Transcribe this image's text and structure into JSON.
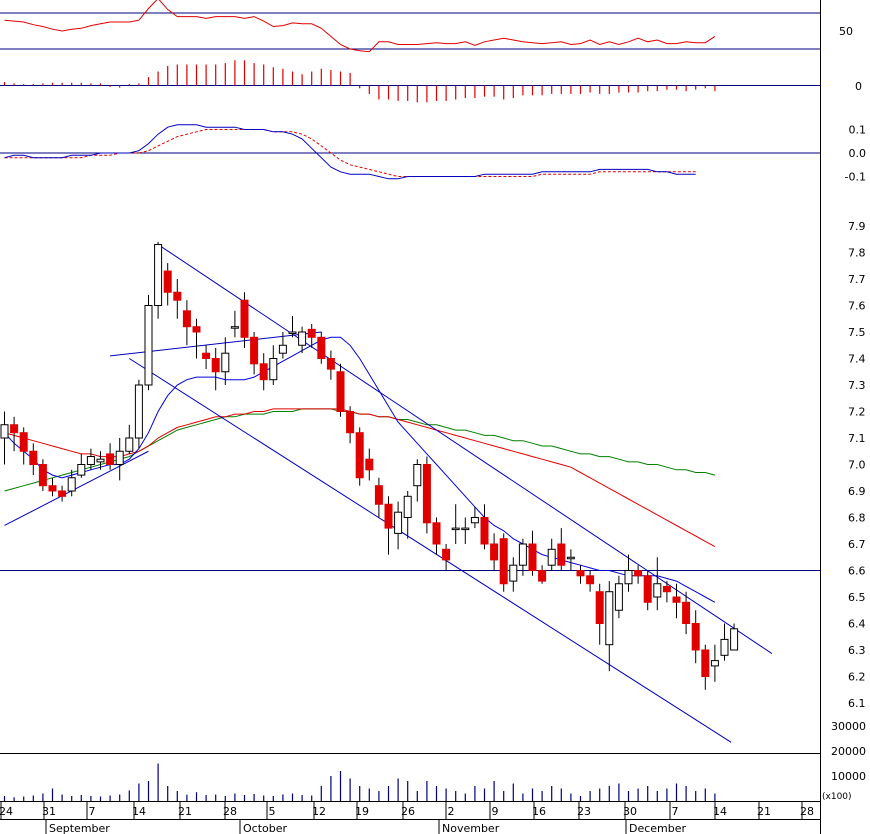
{
  "chart_data": {
    "type": "candlestick",
    "panels": {
      "rsi": {
        "levels": [
          70,
          30
        ],
        "tick_labels": [
          "50"
        ],
        "values": [
          62,
          61,
          60,
          57,
          55,
          52,
          50,
          52,
          53,
          56,
          58,
          60,
          60,
          60,
          62,
          75,
          86,
          74,
          66,
          66,
          66,
          64,
          66,
          66,
          66,
          64,
          66,
          61,
          55,
          56,
          59,
          58,
          58,
          53,
          44,
          35,
          30,
          28,
          27,
          38,
          38,
          35,
          35,
          35,
          36,
          37,
          36,
          36,
          38,
          34,
          38,
          40,
          42,
          40,
          38,
          37,
          36,
          37,
          38,
          35,
          36,
          40,
          35,
          38,
          35,
          38,
          42,
          38,
          40,
          36,
          36,
          38,
          37,
          37,
          44
        ]
      },
      "histogram": {
        "tick_labels": [
          "0"
        ],
        "values": [
          0.005,
          0.003,
          0.002,
          0.002,
          0.003,
          0.004,
          0.004,
          0.004,
          0.004,
          0.003,
          0.003,
          -0.002,
          -0.003,
          0.002,
          0.003,
          0.012,
          0.02,
          0.028,
          0.03,
          0.03,
          0.03,
          0.03,
          0.03,
          0.032,
          0.036,
          0.036,
          0.032,
          0.03,
          0.026,
          0.024,
          0.02,
          0.016,
          0.02,
          0.024,
          0.022,
          0.02,
          0.018,
          -0.004,
          -0.012,
          -0.02,
          -0.02,
          -0.022,
          -0.022,
          -0.024,
          -0.024,
          -0.022,
          -0.022,
          -0.02,
          -0.018,
          -0.018,
          -0.016,
          -0.016,
          -0.02,
          -0.018,
          -0.014,
          -0.014,
          -0.014,
          -0.012,
          -0.012,
          -0.012,
          -0.012,
          -0.01,
          -0.012,
          -0.012,
          -0.01,
          -0.01,
          -0.01,
          -0.008,
          -0.008,
          -0.006,
          -0.006,
          -0.008,
          -0.006,
          -0.004,
          -0.008
        ]
      },
      "macd": {
        "tick_labels": [
          "0.1",
          "0.0",
          "-0.1"
        ],
        "ylim": [
          -0.14,
          0.16
        ],
        "macd": [
          -0.02,
          -0.01,
          -0.01,
          -0.02,
          -0.02,
          -0.02,
          -0.02,
          -0.01,
          -0.01,
          -0.01,
          0.0,
          0.0,
          0.0,
          0.0,
          0.01,
          0.04,
          0.08,
          0.11,
          0.12,
          0.12,
          0.12,
          0.11,
          0.11,
          0.11,
          0.11,
          0.1,
          0.1,
          0.1,
          0.09,
          0.09,
          0.08,
          0.06,
          0.02,
          -0.02,
          -0.06,
          -0.08,
          -0.09,
          -0.09,
          -0.09,
          -0.1,
          -0.11,
          -0.11,
          -0.1,
          -0.1,
          -0.1,
          -0.1,
          -0.1,
          -0.1,
          -0.1,
          -0.1,
          -0.09,
          -0.09,
          -0.09,
          -0.09,
          -0.09,
          -0.09,
          -0.08,
          -0.08,
          -0.08,
          -0.08,
          -0.08,
          -0.08,
          -0.07,
          -0.07,
          -0.07,
          -0.07,
          -0.07,
          -0.07,
          -0.08,
          -0.08,
          -0.09,
          -0.09,
          -0.09
        ],
        "signal": [
          -0.02,
          -0.02,
          -0.02,
          -0.02,
          -0.02,
          -0.02,
          -0.02,
          -0.02,
          -0.02,
          -0.01,
          -0.01,
          -0.01,
          0.0,
          0.0,
          0.0,
          0.01,
          0.03,
          0.05,
          0.07,
          0.08,
          0.09,
          0.1,
          0.1,
          0.1,
          0.1,
          0.1,
          0.1,
          0.1,
          0.09,
          0.09,
          0.09,
          0.08,
          0.06,
          0.03,
          0.0,
          -0.03,
          -0.05,
          -0.06,
          -0.07,
          -0.08,
          -0.09,
          -0.1,
          -0.1,
          -0.1,
          -0.1,
          -0.1,
          -0.1,
          -0.1,
          -0.1,
          -0.1,
          -0.1,
          -0.1,
          -0.1,
          -0.1,
          -0.1,
          -0.1,
          -0.09,
          -0.09,
          -0.09,
          -0.09,
          -0.09,
          -0.09,
          -0.08,
          -0.08,
          -0.08,
          -0.08,
          -0.08,
          -0.08,
          -0.08,
          -0.08,
          -0.08,
          -0.08,
          -0.08
        ]
      },
      "price": {
        "tick_labels": [
          "7.9",
          "7.8",
          "7.7",
          "7.6",
          "7.5",
          "7.4",
          "7.3",
          "7.2",
          "7.1",
          "7.0",
          "6.9",
          "6.8",
          "6.7",
          "6.6",
          "6.5",
          "6.4",
          "6.3",
          "6.2",
          "6.1"
        ],
        "ylim": [
          6.05,
          7.95
        ],
        "horizontal_line": 6.6,
        "candles": [
          [
            7.1,
            7.15,
            7.2,
            7.0
          ],
          [
            7.15,
            7.12,
            7.18,
            7.05
          ],
          [
            7.12,
            7.05,
            7.14,
            7.0
          ],
          [
            7.05,
            7.0,
            7.08,
            6.96
          ],
          [
            7.0,
            6.92,
            7.02,
            6.9
          ],
          [
            6.92,
            6.9,
            6.95,
            6.88
          ],
          [
            6.9,
            6.88,
            6.92,
            6.86
          ],
          [
            6.9,
            6.95,
            6.98,
            6.88
          ],
          [
            6.96,
            7.0,
            7.04,
            6.95
          ],
          [
            7.0,
            7.03,
            7.06,
            6.98
          ],
          [
            7.01,
            7.02,
            7.05,
            6.98
          ],
          [
            7.04,
            7.0,
            7.08,
            6.98
          ],
          [
            7.0,
            7.05,
            7.1,
            6.94
          ],
          [
            7.05,
            7.1,
            7.15,
            7.04
          ],
          [
            7.1,
            7.3,
            7.32,
            7.06
          ],
          [
            7.3,
            7.6,
            7.64,
            7.28
          ],
          [
            7.6,
            7.83,
            7.84,
            7.55
          ],
          [
            7.73,
            7.65,
            7.76,
            7.6
          ],
          [
            7.65,
            7.62,
            7.7,
            7.55
          ],
          [
            7.58,
            7.52,
            7.62,
            7.45
          ],
          [
            7.52,
            7.5,
            7.55,
            7.4
          ],
          [
            7.42,
            7.4,
            7.45,
            7.36
          ],
          [
            7.4,
            7.35,
            7.44,
            7.28
          ],
          [
            7.35,
            7.42,
            7.48,
            7.3
          ],
          [
            7.52,
            7.52,
            7.58,
            7.48
          ],
          [
            7.62,
            7.48,
            7.65,
            7.44
          ],
          [
            7.48,
            7.38,
            7.5,
            7.34
          ],
          [
            7.38,
            7.32,
            7.42,
            7.28
          ],
          [
            7.32,
            7.4,
            7.45,
            7.3
          ],
          [
            7.42,
            7.45,
            7.5,
            7.4
          ],
          [
            7.5,
            7.5,
            7.56,
            7.48
          ],
          [
            7.45,
            7.5,
            7.52,
            7.42
          ],
          [
            7.51,
            7.48,
            7.53,
            7.44
          ],
          [
            7.48,
            7.4,
            7.5,
            7.38
          ],
          [
            7.4,
            7.36,
            7.43,
            7.32
          ],
          [
            7.35,
            7.2,
            7.38,
            7.18
          ],
          [
            7.2,
            7.12,
            7.22,
            7.08
          ],
          [
            7.12,
            6.95,
            7.14,
            6.92
          ],
          [
            7.02,
            6.98,
            7.06,
            6.94
          ],
          [
            6.92,
            6.85,
            6.95,
            6.8
          ],
          [
            6.85,
            6.76,
            6.88,
            6.66
          ],
          [
            6.74,
            6.82,
            6.86,
            6.68
          ],
          [
            6.8,
            6.88,
            6.9,
            6.72
          ],
          [
            6.92,
            7.0,
            7.02,
            6.86
          ],
          [
            7.0,
            6.78,
            7.03,
            6.74
          ],
          [
            6.78,
            6.7,
            6.8,
            6.66
          ],
          [
            6.68,
            6.64,
            6.7,
            6.6
          ],
          [
            6.76,
            6.76,
            6.85,
            6.7
          ],
          [
            6.76,
            6.76,
            6.8,
            6.7
          ],
          [
            6.78,
            6.8,
            6.84,
            6.76
          ],
          [
            6.8,
            6.7,
            6.85,
            6.68
          ],
          [
            6.7,
            6.64,
            6.74,
            6.6
          ],
          [
            6.72,
            6.55,
            6.74,
            6.52
          ],
          [
            6.56,
            6.62,
            6.65,
            6.52
          ],
          [
            6.62,
            6.7,
            6.72,
            6.58
          ],
          [
            6.7,
            6.6,
            6.75,
            6.58
          ],
          [
            6.6,
            6.56,
            6.62,
            6.55
          ],
          [
            6.62,
            6.68,
            6.72,
            6.6
          ],
          [
            6.7,
            6.62,
            6.76,
            6.6
          ],
          [
            6.65,
            6.65,
            6.68,
            6.6
          ],
          [
            6.6,
            6.58,
            6.62,
            6.55
          ],
          [
            6.58,
            6.55,
            6.6,
            6.52
          ],
          [
            6.52,
            6.4,
            6.55,
            6.32
          ],
          [
            6.32,
            6.52,
            6.56,
            6.22
          ],
          [
            6.45,
            6.55,
            6.58,
            6.42
          ],
          [
            6.55,
            6.6,
            6.66,
            6.52
          ],
          [
            6.6,
            6.58,
            6.62,
            6.55
          ],
          [
            6.58,
            6.48,
            6.6,
            6.45
          ],
          [
            6.5,
            6.55,
            6.65,
            6.45
          ],
          [
            6.54,
            6.52,
            6.56,
            6.48
          ],
          [
            6.5,
            6.48,
            6.55,
            6.42
          ],
          [
            6.48,
            6.4,
            6.52,
            6.36
          ],
          [
            6.4,
            6.3,
            6.45,
            6.25
          ],
          [
            6.3,
            6.2,
            6.32,
            6.15
          ],
          [
            6.24,
            6.26,
            6.32,
            6.18
          ],
          [
            6.28,
            6.34,
            6.4,
            6.26
          ],
          [
            6.3,
            6.38,
            6.4,
            6.3
          ]
        ],
        "ma_short": [
          7.12,
          7.08,
          7.05,
          7.02,
          6.98,
          6.96,
          6.95,
          6.96,
          6.97,
          6.98,
          6.99,
          7.0,
          7.0,
          7.02,
          7.06,
          7.12,
          7.2,
          7.26,
          7.3,
          7.32,
          7.33,
          7.33,
          7.33,
          7.32,
          7.32,
          7.32,
          7.33,
          7.35,
          7.37,
          7.39,
          7.41,
          7.43,
          7.45,
          7.47,
          7.48,
          7.48,
          7.45,
          7.4,
          7.34,
          7.28,
          7.22,
          7.16,
          7.12,
          7.08,
          7.04,
          7.0,
          6.96,
          6.92,
          6.88,
          6.84,
          6.8,
          6.77,
          6.75,
          6.72,
          6.7,
          6.68,
          6.66,
          6.65,
          6.64,
          6.63,
          6.62,
          6.61,
          6.6,
          6.6,
          6.59,
          6.58,
          6.58,
          6.58,
          6.58,
          6.57,
          6.56,
          6.54,
          6.52,
          6.5,
          6.48
        ],
        "ma_mid": [
          7.12,
          7.11,
          7.1,
          7.09,
          7.08,
          7.07,
          7.06,
          7.05,
          7.04,
          7.04,
          7.03,
          7.03,
          7.03,
          7.04,
          7.05,
          7.07,
          7.1,
          7.12,
          7.14,
          7.15,
          7.16,
          7.17,
          7.18,
          7.18,
          7.19,
          7.19,
          7.2,
          7.2,
          7.21,
          7.21,
          7.21,
          7.21,
          7.21,
          7.21,
          7.21,
          7.21,
          7.2,
          7.19,
          7.19,
          7.18,
          7.18,
          7.17,
          7.16,
          7.15,
          7.14,
          7.13,
          7.12,
          7.11,
          7.1,
          7.09,
          7.08,
          7.07,
          7.06,
          7.05,
          7.04,
          7.03,
          7.02,
          7.01,
          7.0,
          6.99,
          6.97,
          6.95,
          6.93,
          6.91,
          6.89,
          6.87,
          6.85,
          6.83,
          6.81,
          6.79,
          6.77,
          6.75,
          6.73,
          6.71,
          6.69
        ],
        "ma_long": [
          6.9,
          6.91,
          6.92,
          6.93,
          6.94,
          6.95,
          6.96,
          6.97,
          6.98,
          6.99,
          7.0,
          7.01,
          7.02,
          7.03,
          7.05,
          7.07,
          7.09,
          7.11,
          7.13,
          7.14,
          7.15,
          7.16,
          7.17,
          7.18,
          7.18,
          7.19,
          7.19,
          7.19,
          7.2,
          7.2,
          7.2,
          7.21,
          7.21,
          7.21,
          7.21,
          7.2,
          7.2,
          7.19,
          7.19,
          7.18,
          7.18,
          7.17,
          7.17,
          7.16,
          7.15,
          7.15,
          7.14,
          7.13,
          7.13,
          7.12,
          7.11,
          7.11,
          7.1,
          7.09,
          7.09,
          7.08,
          7.07,
          7.07,
          7.06,
          7.05,
          7.04,
          7.04,
          7.03,
          7.03,
          7.02,
          7.01,
          7.01,
          7.0,
          7.0,
          6.99,
          6.98,
          6.98,
          6.97,
          6.97,
          6.96
        ],
        "trendlines": [
          [
            [
              0,
              6.77
            ],
            [
              15,
              7.05
            ]
          ],
          [
            [
              16,
              7.83
            ],
            [
              74,
              6.43
            ]
          ],
          [
            [
              13,
              7.4
            ],
            [
              71,
              6.06
            ]
          ],
          [
            [
              11,
              7.41
            ],
            [
              33,
              7.5
            ]
          ]
        ]
      },
      "volume": {
        "tick_labels": [
          "30000",
          "20000",
          "10000"
        ],
        "unit_label": "(x100)",
        "values": [
          2000,
          1500,
          1800,
          2200,
          3000,
          5000,
          2600,
          2000,
          2400,
          2000,
          1800,
          2200,
          2600,
          4200,
          7000,
          8000,
          15000,
          6000,
          4000,
          2500,
          3500,
          2400,
          2600,
          2000,
          3000,
          2400,
          2800,
          2200,
          2000,
          2600,
          3000,
          2400,
          2200,
          6000,
          10000,
          12000,
          9000,
          6000,
          5000,
          4000,
          6000,
          9000,
          8000,
          4000,
          8000,
          6000,
          5000,
          4000,
          3000,
          6000,
          5000,
          8000,
          4000,
          7000,
          3000,
          5000,
          4000,
          6000,
          5000,
          3000,
          2000,
          4000,
          5000,
          6000,
          7000,
          4000,
          5000,
          6000,
          4000,
          5000,
          7000,
          6000,
          4000,
          5000,
          3000
        ]
      }
    },
    "x_axis": {
      "day_labels": [
        "24",
        "31",
        "7",
        "14",
        "21",
        "28",
        "5",
        "12",
        "19",
        "26",
        "2",
        "9",
        "16",
        "23",
        "30",
        "7",
        "14",
        "21",
        "28"
      ],
      "month_labels": [
        "September",
        "October",
        "November",
        "December"
      ]
    },
    "colors": {
      "rsi_line": "#e00000",
      "level_line": "#000080",
      "histogram": "#e00000",
      "macd_line": "#0000c0",
      "signal_line": "#e00000",
      "up_candle": "#ffffff",
      "down_candle": "#e00000",
      "ma_short": "#0000e0",
      "ma_mid": "#e00000",
      "ma_long": "#008000",
      "trendline": "#0000c0",
      "volume_bar": "#000080"
    }
  }
}
